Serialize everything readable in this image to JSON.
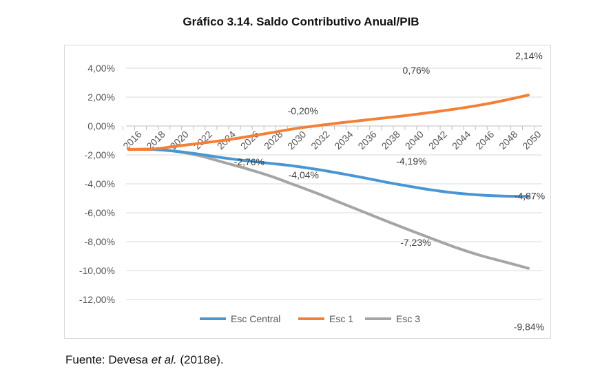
{
  "chart_data": {
    "type": "line",
    "title": "Gráfico 3.14. Saldo Contributivo Anual/PIB",
    "xlabel": "",
    "ylabel": "",
    "x": [
      2016,
      2018,
      2020,
      2022,
      2024,
      2026,
      2028,
      2030,
      2032,
      2034,
      2036,
      2038,
      2040,
      2042,
      2044,
      2046,
      2048,
      2050
    ],
    "y_ticks": [
      "4,00%",
      "2,00%",
      "0,00%",
      "-2,00%",
      "-4,00%",
      "-6,00%",
      "-8,00%",
      "-10,00%",
      "-12,00%"
    ],
    "ylim": [
      -12,
      4
    ],
    "grid": true,
    "legend": "bottom",
    "series": [
      {
        "name": "Esc Central",
        "color": "#4a96d2",
        "values": [
          -1.62,
          -1.62,
          -1.75,
          -1.95,
          -2.2,
          -2.4,
          -2.58,
          -2.76,
          -3.0,
          -3.28,
          -3.58,
          -3.9,
          -4.19,
          -4.45,
          -4.65,
          -4.78,
          -4.85,
          -4.87
        ]
      },
      {
        "name": "Esc 1",
        "color": "#f47f36",
        "values": [
          -1.62,
          -1.6,
          -1.4,
          -1.2,
          -1.0,
          -0.75,
          -0.48,
          -0.2,
          0.02,
          0.22,
          0.4,
          0.58,
          0.76,
          0.97,
          1.2,
          1.46,
          1.78,
          2.14
        ]
      },
      {
        "name": "Esc 3",
        "color": "#a5a5a5",
        "values": [
          -1.62,
          -1.6,
          -1.75,
          -2.05,
          -2.5,
          -2.95,
          -3.45,
          -4.04,
          -4.65,
          -5.3,
          -5.95,
          -6.6,
          -7.23,
          -7.85,
          -8.45,
          -8.97,
          -9.4,
          -9.84
        ]
      }
    ],
    "data_labels": [
      {
        "series": "Esc 1",
        "x": 2030,
        "text": "-0,20%"
      },
      {
        "series": "Esc 1",
        "x": 2040,
        "text": "0,76%"
      },
      {
        "series": "Esc 1",
        "x": 2050,
        "text": "2,14%"
      },
      {
        "series": "Esc Central",
        "x": 2030,
        "text": "-2,76%"
      },
      {
        "series": "Esc Central",
        "x": 2040,
        "text": "-4,19%"
      },
      {
        "series": "Esc Central",
        "x": 2050,
        "text": "-4,87%"
      },
      {
        "series": "Esc 3",
        "x": 2030,
        "text": "-4,04%"
      },
      {
        "series": "Esc 3",
        "x": 2040,
        "text": "-7,23%"
      },
      {
        "series": "Esc 3",
        "x": 2050,
        "text": "-9,84%"
      }
    ]
  },
  "source": {
    "prefix": "Fuente: Devesa ",
    "italic": "et al.",
    "suffix": " (2018e)."
  }
}
